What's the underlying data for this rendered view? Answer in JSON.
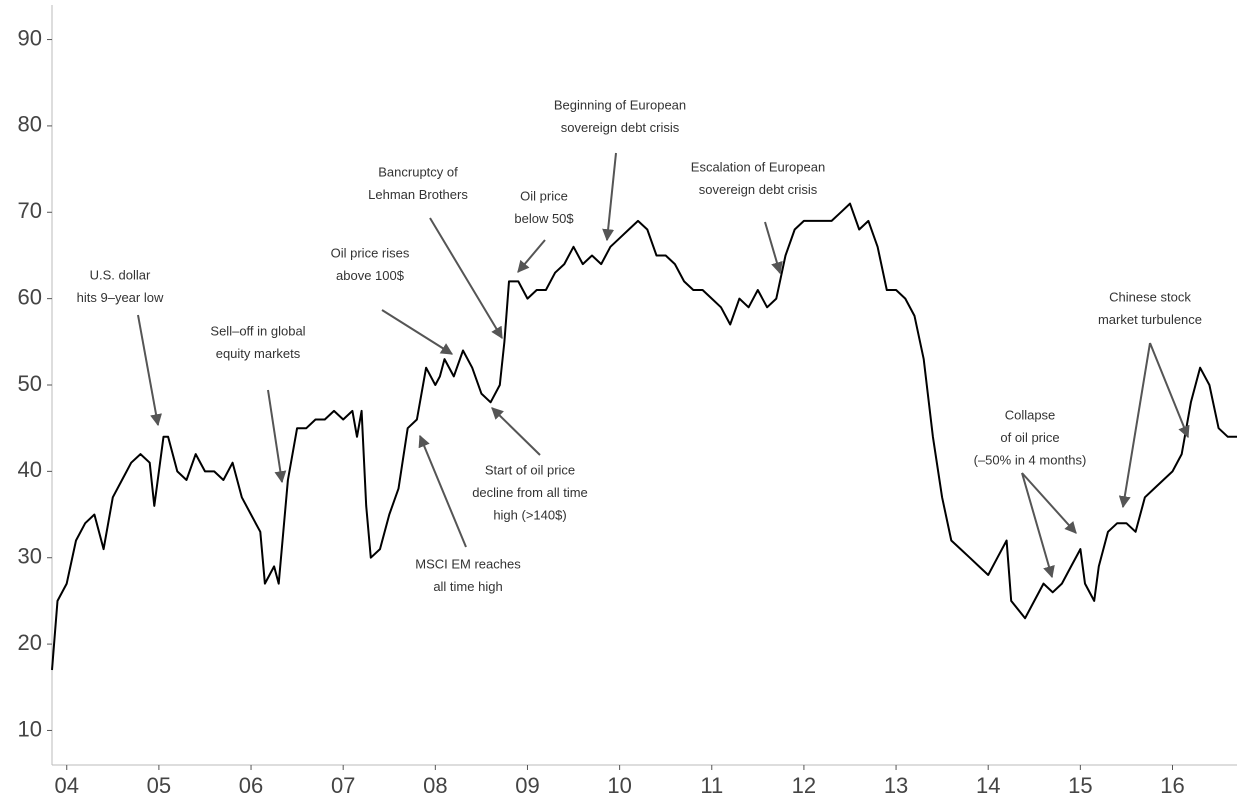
{
  "chart_data": {
    "type": "line",
    "color": "#000000",
    "xlim": [
      2003.84,
      2016.7
    ],
    "ylim": [
      6,
      94
    ],
    "xticks": [
      {
        "value": 2004,
        "label": "04"
      },
      {
        "value": 2005,
        "label": "05"
      },
      {
        "value": 2006,
        "label": "06"
      },
      {
        "value": 2007,
        "label": "07"
      },
      {
        "value": 2008,
        "label": "08"
      },
      {
        "value": 2009,
        "label": "09"
      },
      {
        "value": 2010,
        "label": "10"
      },
      {
        "value": 2011,
        "label": "11"
      },
      {
        "value": 2012,
        "label": "12"
      },
      {
        "value": 2013,
        "label": "13"
      },
      {
        "value": 2014,
        "label": "14"
      },
      {
        "value": 2015,
        "label": "15"
      },
      {
        "value": 2016,
        "label": "16"
      }
    ],
    "yticks": [
      10,
      20,
      30,
      40,
      50,
      60,
      70,
      80,
      90
    ],
    "x": [
      2003.84,
      2003.9,
      2004.0,
      2004.1,
      2004.2,
      2004.3,
      2004.4,
      2004.5,
      2004.6,
      2004.7,
      2004.8,
      2004.9,
      2004.95,
      2005.0,
      2005.05,
      2005.1,
      2005.2,
      2005.3,
      2005.4,
      2005.5,
      2005.6,
      2005.7,
      2005.8,
      2005.9,
      2006.0,
      2006.1,
      2006.15,
      2006.25,
      2006.3,
      2006.35,
      2006.4,
      2006.5,
      2006.6,
      2006.7,
      2006.8,
      2006.9,
      2007.0,
      2007.1,
      2007.15,
      2007.2,
      2007.25,
      2007.3,
      2007.4,
      2007.5,
      2007.6,
      2007.7,
      2007.8,
      2007.9,
      2008.0,
      2008.05,
      2008.1,
      2008.2,
      2008.3,
      2008.4,
      2008.5,
      2008.6,
      2008.7,
      2008.75,
      2008.8,
      2008.9,
      2009.0,
      2009.1,
      2009.2,
      2009.3,
      2009.4,
      2009.5,
      2009.6,
      2009.7,
      2009.8,
      2009.9,
      2010.0,
      2010.1,
      2010.2,
      2010.3,
      2010.4,
      2010.5,
      2010.6,
      2010.7,
      2010.8,
      2010.9,
      2011.0,
      2011.1,
      2011.2,
      2011.3,
      2011.4,
      2011.5,
      2011.6,
      2011.7,
      2011.8,
      2011.9,
      2012.0,
      2012.1,
      2012.2,
      2012.3,
      2012.4,
      2012.5,
      2012.6,
      2012.7,
      2012.8,
      2012.9,
      2013.0,
      2013.1,
      2013.2,
      2013.3,
      2013.4,
      2013.5,
      2013.6,
      2013.7,
      2013.8,
      2013.9,
      2014.0,
      2014.1,
      2014.2,
      2014.25,
      2014.4,
      2014.5,
      2014.6,
      2014.7,
      2014.8,
      2014.9,
      2015.0,
      2015.05,
      2015.15,
      2015.2,
      2015.3,
      2015.4,
      2015.5,
      2015.6,
      2015.7,
      2015.8,
      2015.9,
      2016.0,
      2016.1,
      2016.2,
      2016.3,
      2016.4,
      2016.5,
      2016.6,
      2016.7
    ],
    "values": [
      17,
      25,
      27,
      32,
      34,
      35,
      31,
      37,
      39,
      41,
      42,
      41,
      36,
      40,
      44,
      44,
      40,
      39,
      42,
      40,
      40,
      39,
      41,
      37,
      35,
      33,
      27,
      29,
      27,
      33,
      39,
      45,
      45,
      46,
      46,
      47,
      46,
      47,
      44,
      47,
      36,
      30,
      31,
      35,
      38,
      45,
      46,
      52,
      50,
      51,
      53,
      51,
      54,
      52,
      49,
      48,
      50,
      55,
      62,
      62,
      60,
      61,
      61,
      63,
      64,
      66,
      64,
      65,
      64,
      66,
      67,
      68,
      69,
      68,
      65,
      65,
      64,
      62,
      61,
      61,
      60,
      59,
      57,
      60,
      59,
      61,
      59,
      60,
      65,
      68,
      69,
      69,
      69,
      69,
      70,
      71,
      68,
      69,
      66,
      61,
      61,
      60,
      58,
      53,
      44,
      37,
      32,
      31,
      30,
      29,
      28,
      30,
      32,
      25,
      23,
      25,
      27,
      26,
      27,
      29,
      31,
      27,
      25,
      29,
      33,
      34,
      34,
      33,
      37,
      38,
      39,
      40,
      42,
      48,
      52,
      50,
      45,
      44,
      44
    ],
    "annotations": [
      {
        "lines": [
          "U.S. dollar",
          "hits 9–year low"
        ]
      },
      {
        "lines": [
          "Sell–off in global",
          "equity markets"
        ]
      },
      {
        "lines": [
          "Oil price rises",
          "above 100$"
        ]
      },
      {
        "lines": [
          "Bancruptcy of",
          "Lehman Brothers"
        ]
      },
      {
        "lines": [
          "Oil price",
          "below 50$"
        ]
      },
      {
        "lines": [
          "Beginning of European",
          "sovereign debt crisis"
        ]
      },
      {
        "lines": [
          "Escalation of European",
          "sovereign debt crisis"
        ]
      },
      {
        "lines": [
          "Start of oil price",
          "decline from all time",
          "high (>140$)"
        ]
      },
      {
        "lines": [
          "MSCI EM reaches",
          "all time high"
        ]
      },
      {
        "lines": [
          "Collapse",
          "of oil price",
          "(–50% in 4 months)"
        ]
      },
      {
        "lines": [
          "Chinese stock",
          "market turbulence"
        ]
      }
    ]
  }
}
